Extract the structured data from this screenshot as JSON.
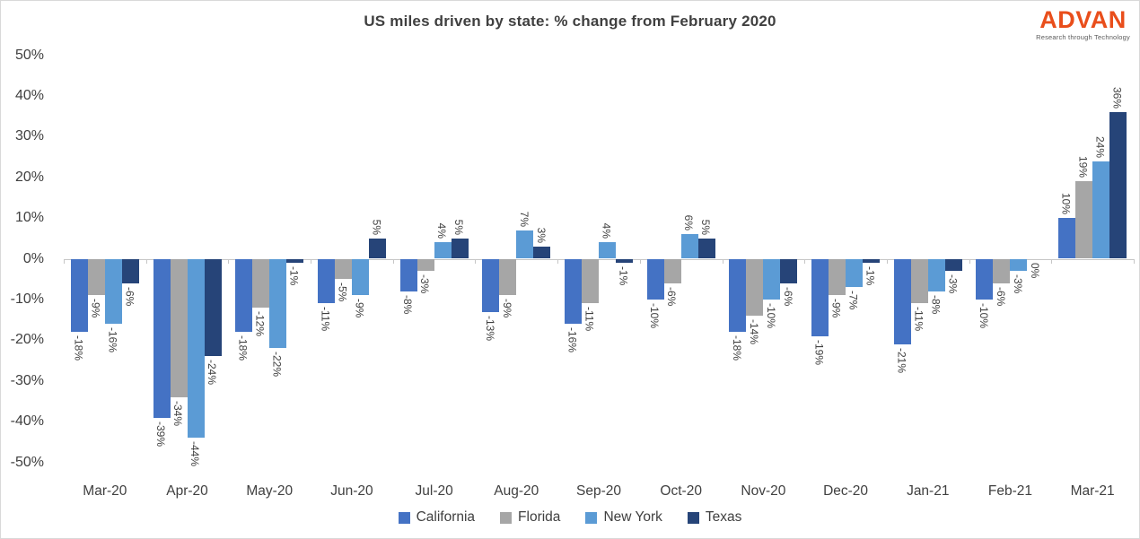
{
  "title": "US miles driven by state: % change from February 2020",
  "logo": {
    "name": "ADVAN",
    "tagline": "Research through Technology",
    "color": "#e94e1b",
    "tagline_color": "#5a5a5a"
  },
  "chart_data": {
    "type": "bar",
    "title": "US miles driven by state: % change from February 2020",
    "categories": [
      "Mar-20",
      "Apr-20",
      "May-20",
      "Jun-20",
      "Jul-20",
      "Aug-20",
      "Sep-20",
      "Oct-20",
      "Nov-20",
      "Dec-20",
      "Jan-21",
      "Feb-21",
      "Mar-21"
    ],
    "series": [
      {
        "name": "California",
        "color": "#4472c4",
        "values": [
          -18,
          -39,
          -18,
          -11,
          -8,
          -13,
          -16,
          -10,
          -18,
          -19,
          -21,
          -10,
          10
        ]
      },
      {
        "name": "Florida",
        "color": "#a6a6a6",
        "values": [
          -9,
          -34,
          -12,
          -5,
          -3,
          -9,
          -11,
          -6,
          -14,
          -9,
          -11,
          -6,
          19
        ]
      },
      {
        "name": "New York",
        "color": "#5b9bd5",
        "values": [
          -16,
          -44,
          -22,
          -9,
          4,
          7,
          4,
          6,
          -10,
          -7,
          -8,
          -3,
          24
        ]
      },
      {
        "name": "Texas",
        "color": "#264478",
        "values": [
          -6,
          -24,
          -1,
          5,
          5,
          3,
          -1,
          5,
          -6,
          -1,
          -3,
          0,
          36
        ]
      }
    ],
    "value_suffix": "%",
    "ylim": [
      -50,
      50
    ],
    "y_tick_step": 10,
    "y_tick_labels": [
      "50%",
      "40%",
      "30%",
      "20%",
      "10%",
      "0%",
      "-10%",
      "-20%",
      "-30%",
      "-40%",
      "-50%"
    ],
    "grid": false,
    "legend_position": "bottom",
    "data_labels": "outside-end-rotated",
    "text_color": "#404040",
    "axis_color": "#c6c6c6"
  }
}
